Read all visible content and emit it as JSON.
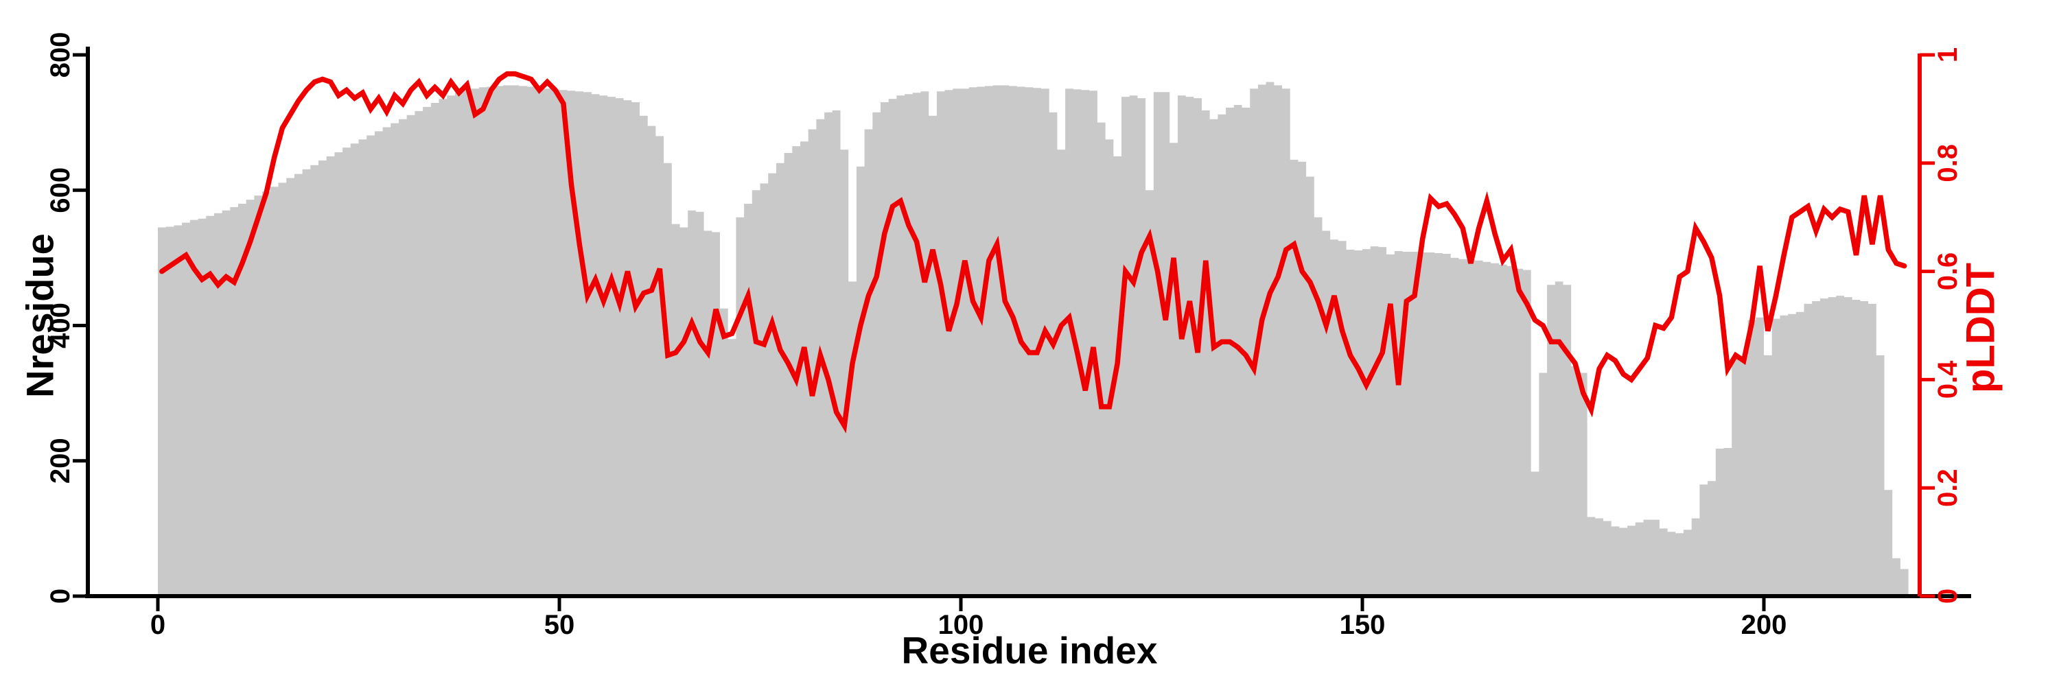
{
  "page": {
    "background": "#ffffff"
  },
  "chart_data": {
    "type": "bar",
    "subtype": "bar+line-dual-axis",
    "title": "",
    "x_axis": {
      "label": "Residue index",
      "ticks": [
        0,
        50,
        100,
        150,
        200
      ],
      "range": [
        0,
        218
      ],
      "grid": false
    },
    "y_left": {
      "label": "Nresidue",
      "ticks": [
        0,
        200,
        400,
        600,
        800
      ],
      "range": [
        0,
        800
      ],
      "color": "#000000"
    },
    "y_right": {
      "label": "pLDDT",
      "ticks": [
        "0",
        "0.2",
        "0.4",
        "0.6",
        "0.8",
        "1"
      ],
      "tick_values": [
        0,
        0.2,
        0.4,
        0.6,
        0.8,
        1
      ],
      "range": [
        0,
        1
      ],
      "color": "#ee0000"
    },
    "legend": "none",
    "bar_series": {
      "name": "Nresidue",
      "color": "#c9c9c9",
      "x_start": 0,
      "values": [
        545,
        546,
        548,
        552,
        556,
        558,
        562,
        566,
        570,
        575,
        580,
        586,
        592,
        598,
        605,
        611,
        618,
        624,
        631,
        637,
        644,
        650,
        656,
        663,
        669,
        675,
        681,
        687,
        693,
        699,
        705,
        711,
        717,
        723,
        729,
        735,
        740,
        744,
        748,
        750,
        752,
        753,
        754,
        755,
        755,
        754,
        753,
        752,
        750,
        749,
        748,
        747,
        746,
        745,
        742,
        740,
        738,
        736,
        733,
        730,
        710,
        695,
        680,
        640,
        550,
        545,
        570,
        568,
        540,
        538,
        425,
        380,
        560,
        580,
        600,
        610,
        625,
        640,
        655,
        665,
        672,
        690,
        705,
        715,
        718,
        660,
        465,
        635,
        690,
        715,
        730,
        735,
        740,
        742,
        744,
        746,
        710,
        746,
        748,
        750,
        750,
        752,
        753,
        754,
        755,
        755,
        754,
        753,
        752,
        751,
        750,
        715,
        660,
        750,
        749,
        748,
        747,
        700,
        675,
        650,
        738,
        740,
        736,
        600,
        745,
        745,
        670,
        740,
        738,
        736,
        718,
        705,
        712,
        722,
        726,
        722,
        750,
        756,
        760,
        755,
        750,
        645,
        642,
        620,
        560,
        540,
        527,
        525,
        512,
        511,
        513,
        517,
        516,
        505,
        510,
        509,
        509,
        508,
        508,
        507,
        506,
        500,
        498,
        497,
        496,
        494,
        492,
        490,
        488,
        484,
        482,
        184,
        330,
        460,
        465,
        460,
        340,
        330,
        117,
        115,
        111,
        103,
        101,
        104,
        109,
        113,
        113,
        100,
        95,
        93,
        98,
        115,
        165,
        170,
        218,
        219,
        350,
        355,
        408,
        412,
        356,
        410,
        415,
        417,
        420,
        432,
        436,
        440,
        442,
        444,
        442,
        438,
        436,
        432,
        356,
        157,
        56,
        40
      ]
    },
    "line_series": {
      "name": "pLDDT",
      "color": "#ee0000",
      "values": [
        0.6,
        0.61,
        0.62,
        0.63,
        0.605,
        0.585,
        0.595,
        0.575,
        0.59,
        0.58,
        0.615,
        0.655,
        0.7,
        0.745,
        0.81,
        0.865,
        0.89,
        0.915,
        0.935,
        0.95,
        0.955,
        0.95,
        0.925,
        0.935,
        0.92,
        0.93,
        0.9,
        0.92,
        0.895,
        0.925,
        0.91,
        0.935,
        0.95,
        0.925,
        0.94,
        0.925,
        0.95,
        0.93,
        0.945,
        0.89,
        0.9,
        0.935,
        0.955,
        0.965,
        0.965,
        0.96,
        0.955,
        0.935,
        0.95,
        0.935,
        0.91,
        0.76,
        0.65,
        0.555,
        0.585,
        0.545,
        0.585,
        0.54,
        0.6,
        0.535,
        0.56,
        0.565,
        0.605,
        0.445,
        0.45,
        0.47,
        0.505,
        0.47,
        0.45,
        0.53,
        0.48,
        0.485,
        0.52,
        0.555,
        0.47,
        0.465,
        0.505,
        0.455,
        0.43,
        0.4,
        0.46,
        0.37,
        0.445,
        0.4,
        0.34,
        0.315,
        0.43,
        0.5,
        0.555,
        0.59,
        0.67,
        0.72,
        0.73,
        0.685,
        0.655,
        0.58,
        0.64,
        0.575,
        0.49,
        0.54,
        0.62,
        0.545,
        0.515,
        0.62,
        0.65,
        0.545,
        0.515,
        0.47,
        0.45,
        0.45,
        0.49,
        0.465,
        0.5,
        0.515,
        0.45,
        0.38,
        0.46,
        0.35,
        0.35,
        0.43,
        0.6,
        0.58,
        0.635,
        0.665,
        0.6,
        0.51,
        0.625,
        0.475,
        0.545,
        0.45,
        0.62,
        0.46,
        0.47,
        0.47,
        0.46,
        0.445,
        0.42,
        0.51,
        0.56,
        0.59,
        0.64,
        0.65,
        0.6,
        0.58,
        0.545,
        0.5,
        0.555,
        0.49,
        0.445,
        0.42,
        0.39,
        0.42,
        0.45,
        0.54,
        0.39,
        0.545,
        0.555,
        0.66,
        0.735,
        0.72,
        0.725,
        0.705,
        0.68,
        0.615,
        0.68,
        0.73,
        0.67,
        0.62,
        0.64,
        0.565,
        0.54,
        0.51,
        0.5,
        0.47,
        0.47,
        0.45,
        0.43,
        0.375,
        0.345,
        0.42,
        0.445,
        0.435,
        0.41,
        0.4,
        0.42,
        0.44,
        0.5,
        0.495,
        0.515,
        0.59,
        0.6,
        0.68,
        0.655,
        0.625,
        0.555,
        0.42,
        0.445,
        0.435,
        0.505,
        0.61,
        0.49,
        0.555,
        0.63,
        0.7,
        0.71,
        0.72,
        0.675,
        0.715,
        0.7,
        0.715,
        0.71,
        0.63,
        0.74,
        0.65,
        0.74,
        0.64,
        0.615,
        0.61
      ]
    }
  }
}
